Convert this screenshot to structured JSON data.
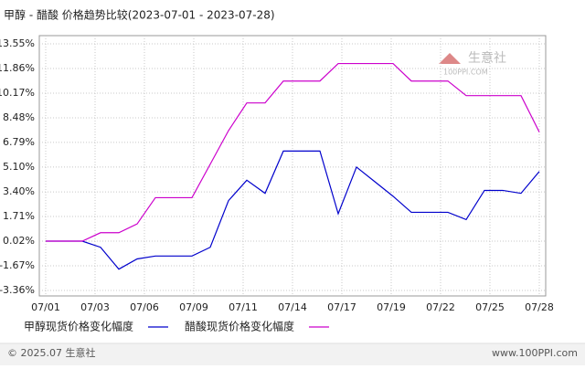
{
  "chart_data": {
    "type": "line",
    "title": "甲醇 - 醋酸 价格趋势比较(2023-07-01 - 2023-07-28)",
    "xticklabels": [
      "07/01",
      "07/03",
      "07/06",
      "07/09",
      "07/11",
      "07/14",
      "07/17",
      "07/19",
      "07/22",
      "07/25",
      "07/28"
    ],
    "ylim": [
      -3.36,
      13.55
    ],
    "yticks": [
      {
        "value": 13.55,
        "label": "13.55%"
      },
      {
        "value": 11.86,
        "label": "11.86%"
      },
      {
        "value": 10.17,
        "label": "10.17%"
      },
      {
        "value": 8.48,
        "label": "8.48%"
      },
      {
        "value": 6.79,
        "label": "6.79%"
      },
      {
        "value": 5.1,
        "label": "5.10%"
      },
      {
        "value": 3.4,
        "label": "3.40%"
      },
      {
        "value": 1.71,
        "label": "1.71%"
      },
      {
        "value": 0.02,
        "label": "0.02%"
      },
      {
        "value": -1.67,
        "label": "-1.67%"
      },
      {
        "value": -3.36,
        "label": "-3.36%"
      }
    ],
    "grid": true,
    "series": [
      {
        "name": "甲醇现货价格变化幅度",
        "color": "#0000cc",
        "values": [
          0.02,
          0.02,
          0.02,
          -0.4,
          -1.9,
          -1.2,
          -1.0,
          -1.0,
          -1.0,
          -0.4,
          2.8,
          4.2,
          3.3,
          6.2,
          6.2,
          6.2,
          1.9,
          5.1,
          4.1,
          3.1,
          2.0,
          2.0,
          2.0,
          1.5,
          3.5,
          3.5,
          3.3,
          4.8
        ]
      },
      {
        "name": "醋酸现货价格变化幅度",
        "color": "#cc00cc",
        "values": [
          0.02,
          0.02,
          0.02,
          0.6,
          0.6,
          1.2,
          3.0,
          3.0,
          3.0,
          5.3,
          7.6,
          9.5,
          9.5,
          11.0,
          11.0,
          11.0,
          12.2,
          12.2,
          12.2,
          12.2,
          11.0,
          11.0,
          11.0,
          10.0,
          10.0,
          10.0,
          10.0,
          7.5
        ]
      }
    ]
  },
  "watermark": {
    "name": "生意社",
    "site": "100PPI.COM"
  },
  "footer": {
    "copyright": "© 2025.07 生意社",
    "site": "www.100PPI.com"
  }
}
